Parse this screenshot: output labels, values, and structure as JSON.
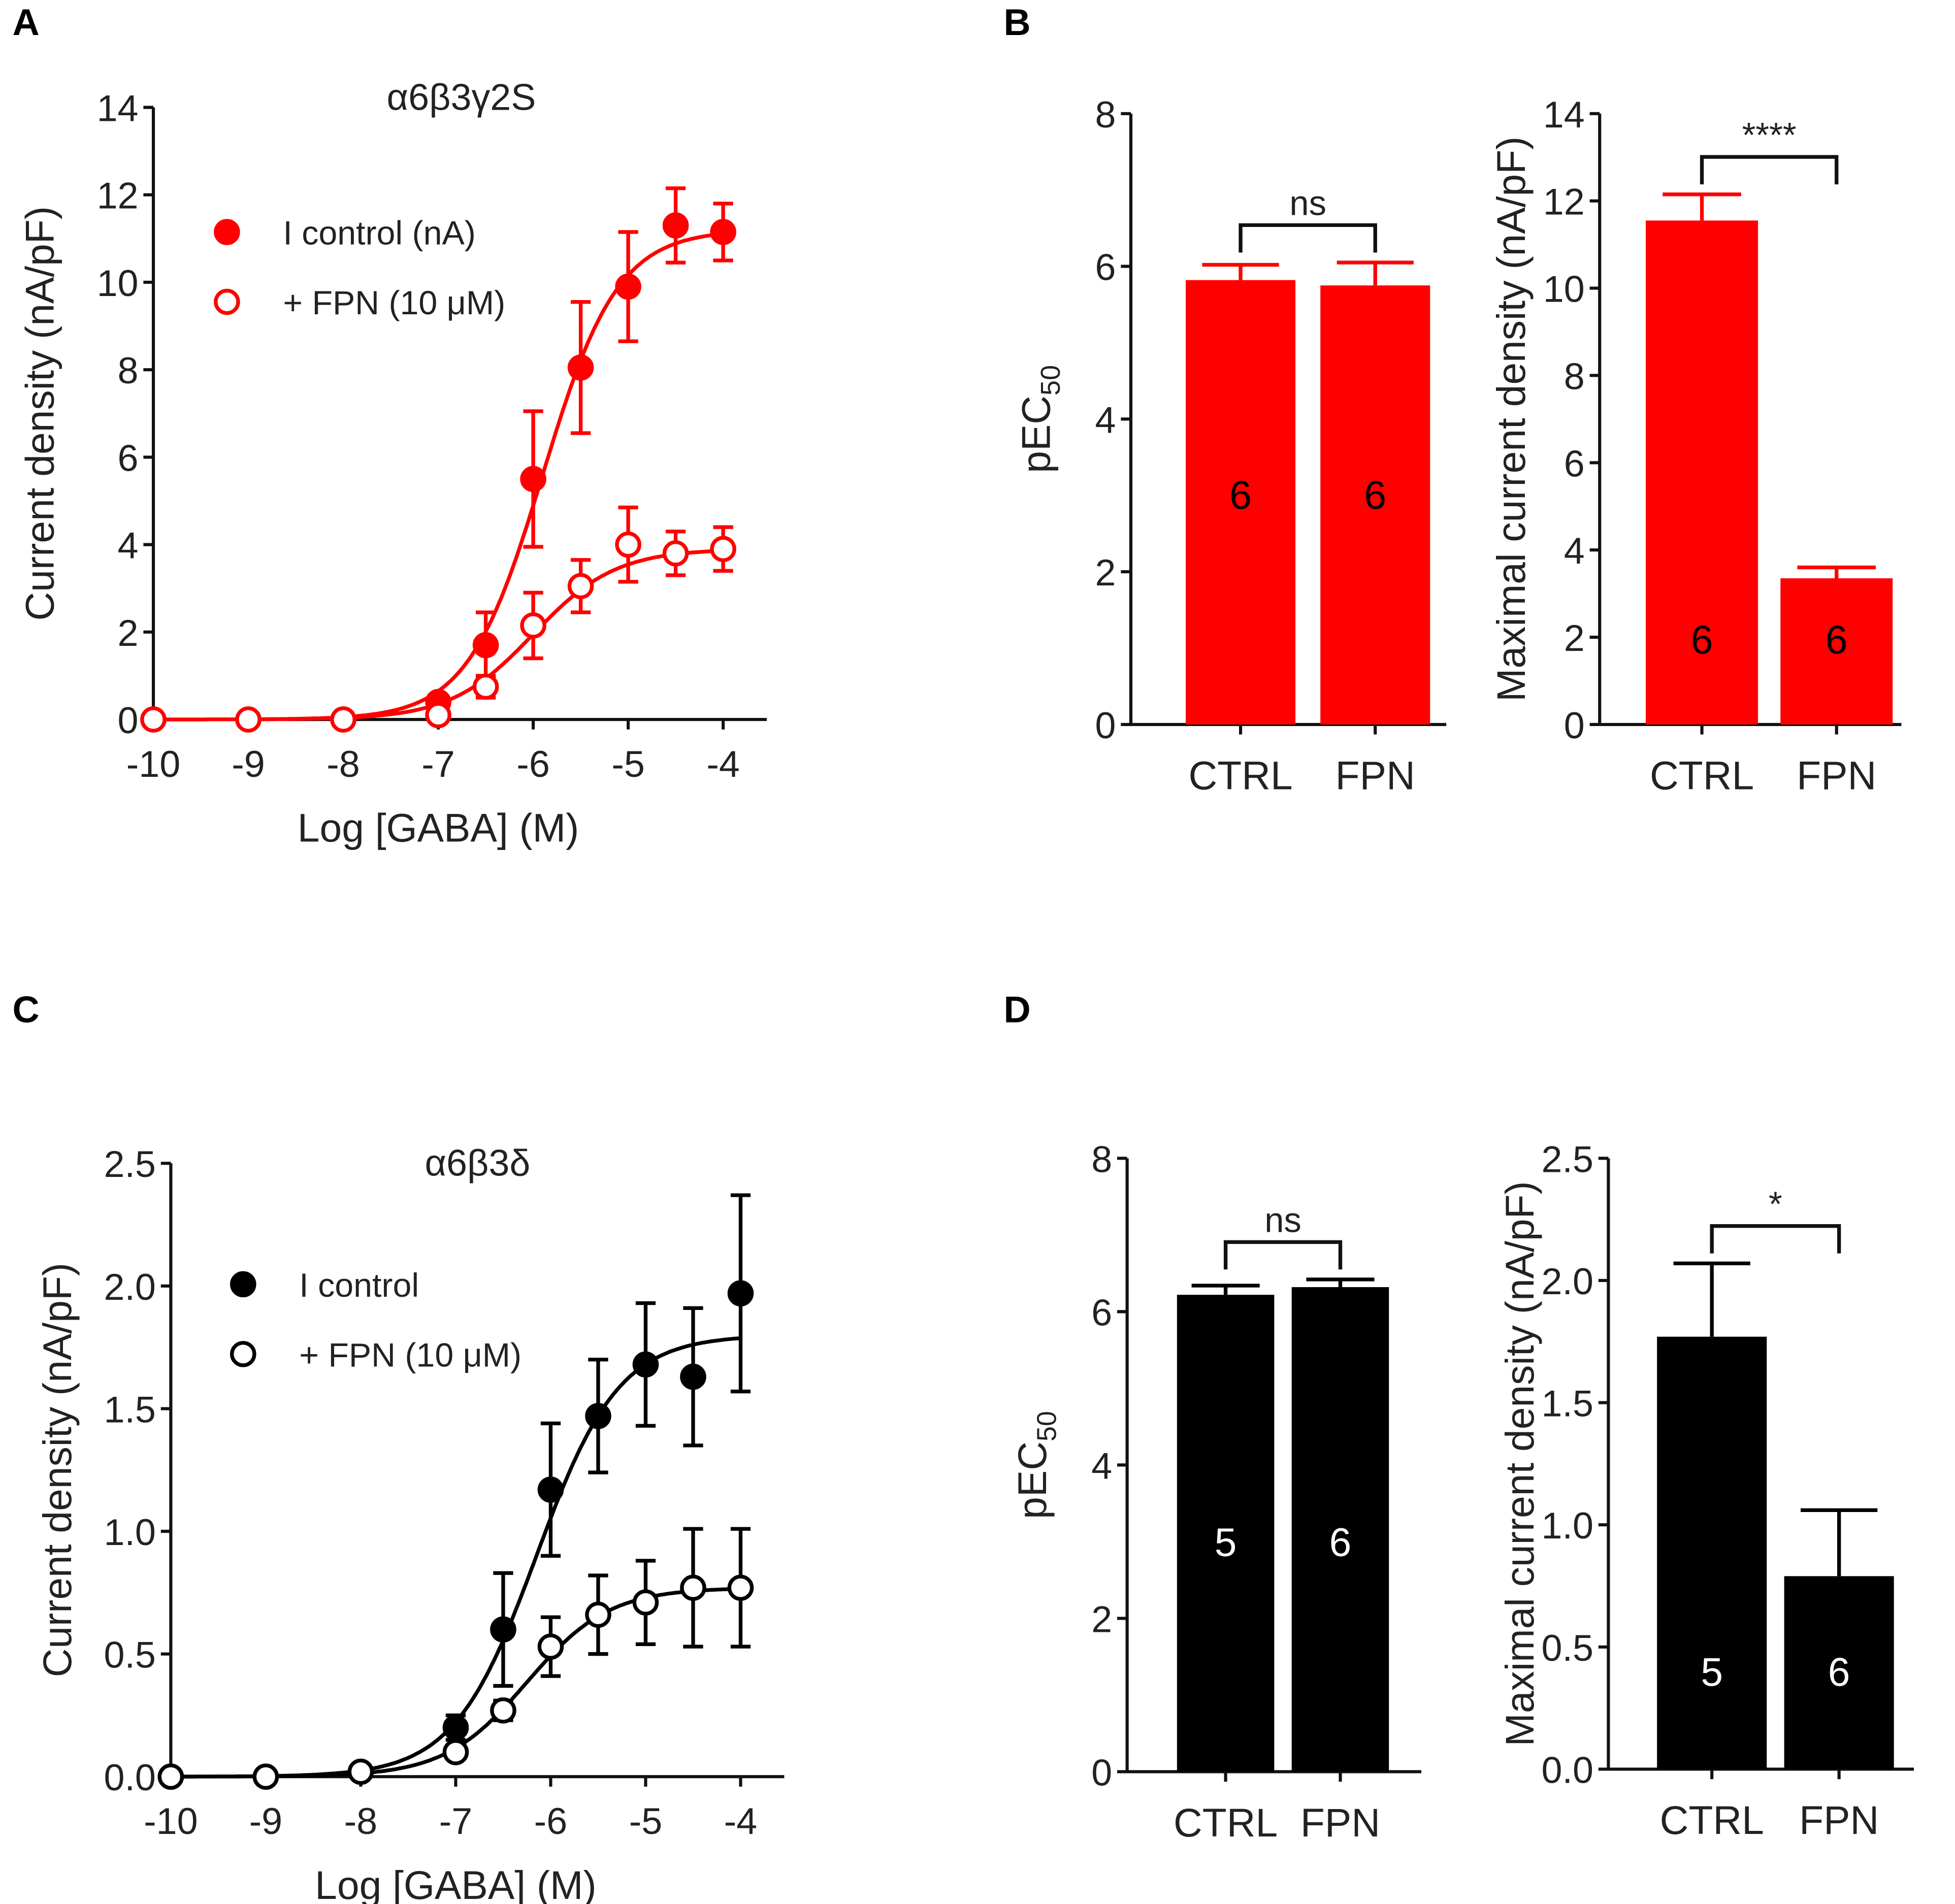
{
  "chart_data": [
    {
      "panel": "A",
      "type": "line",
      "title": "α6β3γ2S",
      "xlabel": "Log [GABA] (M)",
      "ylabel": "Current density (nA/pF)",
      "xlim": [
        -10,
        -4
      ],
      "ylim": [
        0,
        14
      ],
      "xticks": [
        -10,
        -9,
        -8,
        -7,
        -6,
        -5,
        -4
      ],
      "yticks": [
        0,
        2,
        4,
        6,
        8,
        10,
        12,
        14
      ],
      "color": "#ff0000",
      "legend_position": "top-left",
      "series": [
        {
          "name": "I control (nA)",
          "marker": "filled",
          "x": [
            -10,
            -9,
            -8,
            -7,
            -6.5,
            -6,
            -5.5,
            -5,
            -4.5,
            -4
          ],
          "y": [
            0,
            0,
            0,
            0.4,
            1.7,
            5.5,
            8.05,
            9.9,
            11.3,
            11.15
          ],
          "err": [
            0,
            0,
            0,
            0.1,
            0.75,
            1.55,
            1.5,
            1.25,
            0.85,
            0.65
          ],
          "fit": {
            "top": 11.2,
            "logEC50": -5.9,
            "hill": 1.1
          }
        },
        {
          "name": "+ FPN (10 μM)",
          "marker": "open",
          "x": [
            -10,
            -9,
            -8,
            -7,
            -6.5,
            -6,
            -5.5,
            -5,
            -4.5,
            -4
          ],
          "y": [
            0,
            0,
            0,
            0.1,
            0.75,
            2.15,
            3.05,
            4.0,
            3.8,
            3.9
          ],
          "err": [
            0,
            0,
            0,
            0.1,
            0.25,
            0.75,
            0.6,
            0.85,
            0.5,
            0.5
          ],
          "fit": {
            "top": 3.9,
            "logEC50": -6.0,
            "hill": 1.0
          }
        }
      ]
    },
    {
      "panel": "B",
      "type": "bar",
      "ylabel": "pEC50",
      "ylabel_main": "pEC",
      "ylabel_sub": "50",
      "categories": [
        "CTRL",
        "FPN"
      ],
      "values": [
        5.82,
        5.75
      ],
      "err": [
        0.2,
        0.3
      ],
      "n": [
        "6",
        "6"
      ],
      "ylim": [
        0,
        8
      ],
      "yticks": [
        0,
        2,
        4,
        6,
        8
      ],
      "significance": "ns",
      "color": "#ff0000",
      "n_color": "#000000"
    },
    {
      "panel": "B",
      "type": "bar",
      "ylabel": "Maximal current density (nA/pF)",
      "categories": [
        "CTRL",
        "FPN"
      ],
      "values": [
        11.55,
        3.35
      ],
      "err": [
        0.6,
        0.25
      ],
      "n": [
        "6",
        "6"
      ],
      "ylim": [
        0,
        14
      ],
      "yticks": [
        0,
        2,
        4,
        6,
        8,
        10,
        12,
        14
      ],
      "significance": "****",
      "color": "#ff0000",
      "n_color": "#000000"
    },
    {
      "panel": "C",
      "type": "line",
      "title": "α6β3δ",
      "xlabel": "Log [GABA] (M)",
      "ylabel": "Current density (nA/pF)",
      "xlim": [
        -10,
        -4
      ],
      "ylim": [
        0,
        2.5
      ],
      "xticks": [
        -10,
        -9,
        -8,
        -7,
        -6,
        -5,
        -4
      ],
      "yticks": [
        "0.0",
        "0.5",
        "1.0",
        "1.5",
        "2.0",
        "2.5"
      ],
      "color": "#000000",
      "legend_position": "top-left",
      "series": [
        {
          "name": "I control",
          "marker": "filled",
          "x": [
            -10,
            -9,
            -8,
            -7,
            -6.5,
            -6,
            -5.5,
            -5,
            -4.5,
            -4
          ],
          "y": [
            0,
            0,
            0.02,
            0.2,
            0.6,
            1.17,
            1.47,
            1.68,
            1.63,
            1.97
          ],
          "err": [
            0,
            0,
            0,
            0.05,
            0.23,
            0.27,
            0.23,
            0.25,
            0.28,
            0.4
          ],
          "fit": {
            "top": 1.8,
            "logEC50": -6.15,
            "hill": 1.0
          }
        },
        {
          "name": "+ FPN (10 μM)",
          "marker": "open",
          "x": [
            -10,
            -9,
            -8,
            -7,
            -6.5,
            -6,
            -5.5,
            -5,
            -4.5,
            -4
          ],
          "y": [
            0,
            0,
            0.02,
            0.1,
            0.27,
            0.53,
            0.66,
            0.71,
            0.77,
            0.77
          ],
          "err": [
            0,
            0,
            0,
            0.02,
            0.04,
            0.12,
            0.16,
            0.17,
            0.24,
            0.24
          ],
          "fit": {
            "top": 0.77,
            "logEC50": -6.25,
            "hill": 1.0
          }
        }
      ]
    },
    {
      "panel": "D",
      "type": "bar",
      "ylabel": "pEC50",
      "ylabel_main": "pEC",
      "ylabel_sub": "50",
      "categories": [
        "CTRL",
        "FPN"
      ],
      "values": [
        6.22,
        6.32
      ],
      "err": [
        0.12,
        0.1
      ],
      "n": [
        "5",
        "6"
      ],
      "ylim": [
        0,
        8
      ],
      "yticks": [
        0,
        2,
        4,
        6,
        8
      ],
      "significance": "ns",
      "color": "#000000",
      "n_color": "#ffffff"
    },
    {
      "panel": "D",
      "type": "bar",
      "ylabel": "Maximal current density (nA/pF)",
      "categories": [
        "CTRL",
        "FPN"
      ],
      "values": [
        1.77,
        0.79
      ],
      "err": [
        0.3,
        0.27
      ],
      "n": [
        "5",
        "6"
      ],
      "ylim": [
        0,
        2.5
      ],
      "yticks": [
        "0.0",
        "0.5",
        "1.0",
        "1.5",
        "2.0",
        "2.5"
      ],
      "significance": "*",
      "color": "#000000",
      "n_color": "#ffffff"
    }
  ]
}
